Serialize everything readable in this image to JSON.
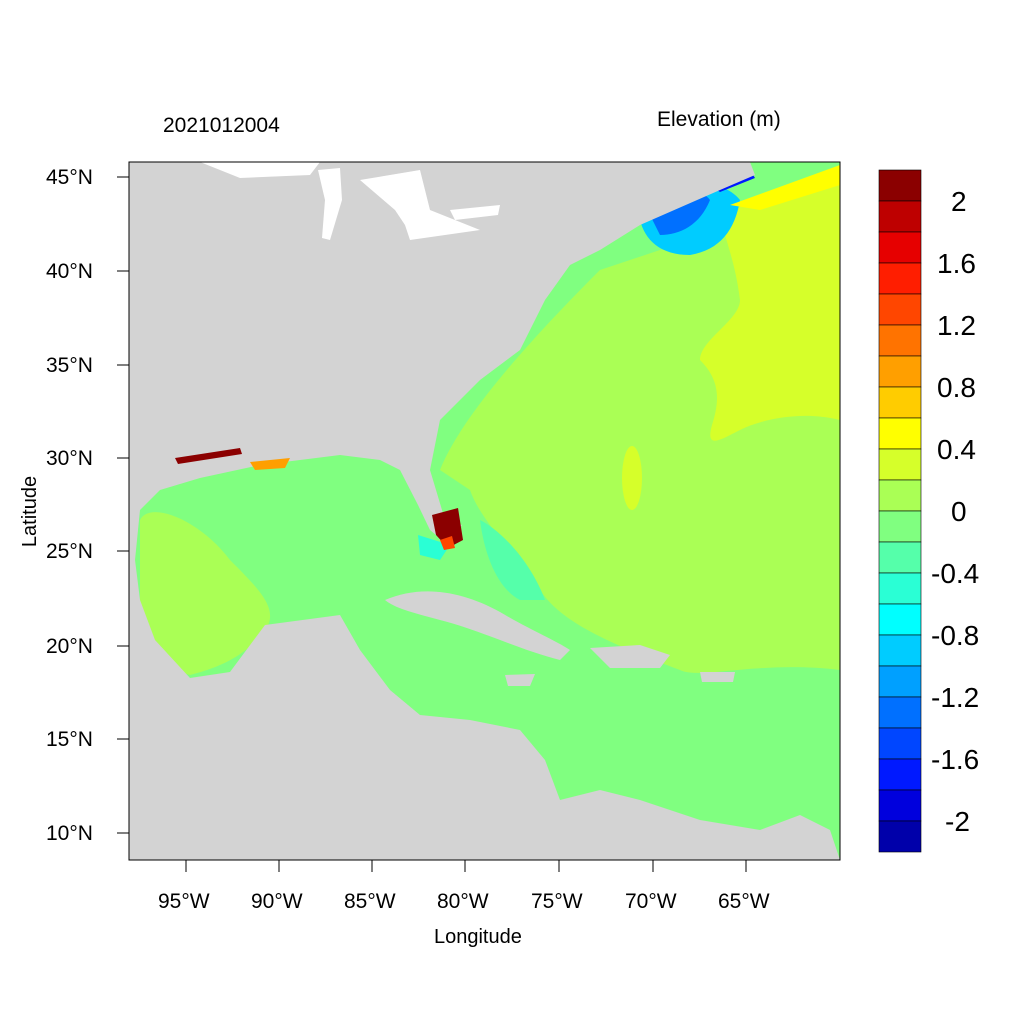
{
  "header": {
    "timestamp": "2021012004",
    "variable_title": "Elevation (m)"
  },
  "axes": {
    "x_label": "Longitude",
    "y_label": "Latitude",
    "x_ticks": [
      "95°W",
      "90°W",
      "85°W",
      "80°W",
      "75°W",
      "70°W",
      "65°W"
    ],
    "y_ticks": [
      "45°N",
      "40°N",
      "35°N",
      "30°N",
      "25°N",
      "20°N",
      "15°N",
      "10°N"
    ]
  },
  "colorbar": {
    "labels": [
      "2",
      "1.6",
      "1.2",
      "0.8",
      "0.4",
      "0",
      "-0.4",
      "-0.8",
      "-1.2",
      "-1.6",
      "-2"
    ],
    "colors": [
      "#8b0000",
      "#be0000",
      "#e60000",
      "#ff1e00",
      "#ff4600",
      "#ff7300",
      "#ff9f00",
      "#ffcc00",
      "#ffff00",
      "#d6ff2a",
      "#aaff55",
      "#80ff80",
      "#55ffaa",
      "#2affd5",
      "#00ffff",
      "#00ccff",
      "#00a0ff",
      "#0070ff",
      "#0046ff",
      "#0019ff",
      "#0000dd",
      "#0000aa"
    ]
  },
  "map_colors": {
    "land": "#d3d3d3",
    "lakes": "#ffffff"
  }
}
